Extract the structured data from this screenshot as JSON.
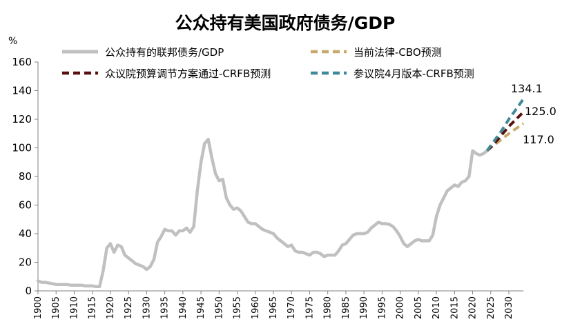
{
  "chart_data": {
    "type": "line",
    "title": "公众持有美国政府债务/GDP",
    "ylabel": "%",
    "xlabel": "",
    "xlim": [
      1900,
      2034
    ],
    "ylim": [
      0,
      160
    ],
    "yticks": [
      0,
      20,
      40,
      60,
      80,
      100,
      120,
      140,
      160
    ],
    "xticks": [
      1900,
      1905,
      1910,
      1915,
      1920,
      1925,
      1930,
      1935,
      1940,
      1945,
      1950,
      1955,
      1960,
      1965,
      1970,
      1975,
      1980,
      1985,
      1990,
      1995,
      2000,
      2005,
      2010,
      2015,
      2020,
      2025,
      2030
    ],
    "grid": false,
    "legend_position": "top",
    "series": [
      {
        "name": "公众持有的联邦债务/GDP",
        "color": "#c0c0c0",
        "style": "solid",
        "x": [
          1900,
          1901,
          1902,
          1903,
          1904,
          1905,
          1906,
          1907,
          1908,
          1909,
          1910,
          1911,
          1912,
          1913,
          1914,
          1915,
          1916,
          1917,
          1918,
          1919,
          1920,
          1921,
          1922,
          1923,
          1924,
          1925,
          1926,
          1927,
          1928,
          1929,
          1930,
          1931,
          1932,
          1933,
          1934,
          1935,
          1936,
          1937,
          1938,
          1939,
          1940,
          1941,
          1942,
          1943,
          1944,
          1945,
          1946,
          1947,
          1948,
          1949,
          1950,
          1951,
          1952,
          1953,
          1954,
          1955,
          1956,
          1957,
          1958,
          1959,
          1960,
          1961,
          1962,
          1963,
          1964,
          1965,
          1966,
          1967,
          1968,
          1969,
          1970,
          1971,
          1972,
          1973,
          1974,
          1975,
          1976,
          1977,
          1978,
          1979,
          1980,
          1981,
          1982,
          1983,
          1984,
          1985,
          1986,
          1987,
          1988,
          1989,
          1990,
          1991,
          1992,
          1993,
          1994,
          1995,
          1996,
          1997,
          1998,
          1999,
          2000,
          2001,
          2002,
          2003,
          2004,
          2005,
          2006,
          2007,
          2008,
          2009,
          2010,
          2011,
          2012,
          2013,
          2014,
          2015,
          2016,
          2017,
          2018,
          2019,
          2020,
          2021,
          2022,
          2023,
          2024
        ],
        "values": [
          7,
          6,
          6,
          5.5,
          5,
          4.5,
          4.5,
          4.5,
          4.5,
          4,
          4,
          4,
          4,
          3.5,
          3.5,
          3.5,
          3,
          3,
          14,
          30,
          33,
          27,
          32,
          31,
          25,
          23,
          21,
          19,
          18,
          17,
          15,
          17,
          22,
          34,
          38,
          43,
          42,
          42,
          39,
          42,
          42,
          44,
          41,
          45,
          70,
          90,
          103,
          106,
          93,
          82,
          77,
          78,
          65,
          60,
          57,
          58,
          56,
          52,
          48,
          47,
          47,
          45,
          43,
          42,
          41,
          40,
          37,
          35,
          33,
          31,
          32,
          28,
          27,
          27,
          26,
          25,
          27,
          27,
          26,
          24,
          25,
          25,
          25,
          28,
          32,
          33,
          36,
          39,
          40,
          40,
          40,
          41,
          44,
          46,
          48,
          47,
          47,
          46.5,
          45,
          42,
          38,
          33,
          31,
          33,
          35,
          36,
          35,
          35,
          35,
          39,
          52,
          60,
          65,
          70,
          72,
          74,
          73,
          76,
          77,
          80,
          98,
          96,
          95,
          96,
          98
        ]
      },
      {
        "name": "当前法律-CBO预测",
        "color": "#c9a96a",
        "style": "dashed",
        "x": [
          2024,
          2026,
          2028,
          2030,
          2032,
          2034
        ],
        "values": [
          98,
          102,
          106,
          110,
          113.5,
          117
        ]
      },
      {
        "name": "众议院预算调节方案通过-CRFB预测",
        "color": "#5c0f0f",
        "style": "dashed",
        "x": [
          2024,
          2026,
          2028,
          2030,
          2032,
          2034
        ],
        "values": [
          98,
          103,
          109,
          115,
          120,
          125
        ]
      },
      {
        "name": "参议院4月版本-CRFB预测",
        "color": "#3e8a99",
        "style": "dashed",
        "x": [
          2024,
          2026,
          2028,
          2030,
          2032,
          2034
        ],
        "values": [
          98,
          105,
          112,
          120,
          127,
          134.1
        ]
      }
    ],
    "annotations": [
      {
        "text": "134.1",
        "x": 2034,
        "y": 134.1
      },
      {
        "text": "125.0",
        "x": 2034,
        "y": 125.0
      },
      {
        "text": "117.0",
        "x": 2034,
        "y": 117.0
      }
    ]
  }
}
